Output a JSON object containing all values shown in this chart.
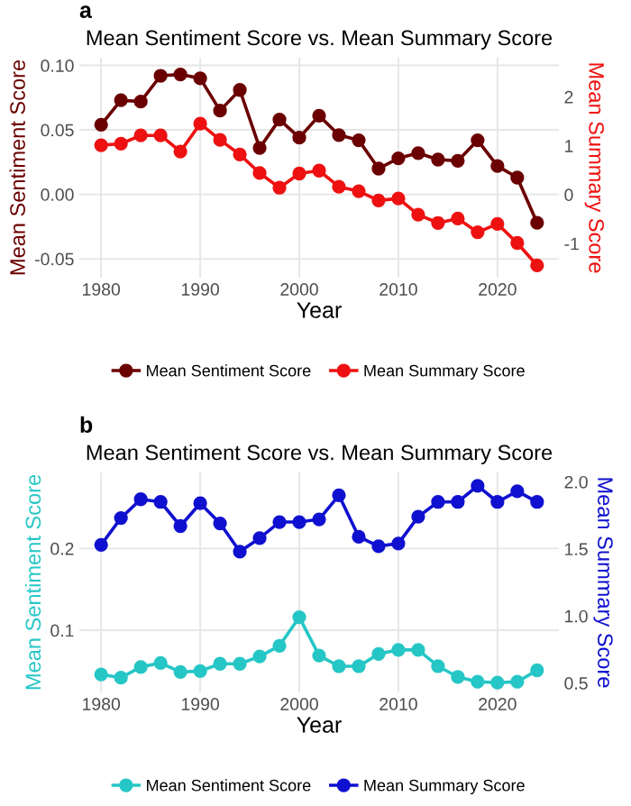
{
  "chart_data": [
    {
      "type": "line",
      "title": "Mean Sentiment Score vs. Mean Summary Score",
      "xlabel": "Year",
      "ylabel": "Mean Sentiment Score",
      "y2label": "Mean Summary Score",
      "annotations": [
        "a"
      ],
      "x": [
        1980,
        1982,
        1984,
        1986,
        1988,
        1990,
        1992,
        1994,
        1996,
        1998,
        2000,
        2002,
        2004,
        2006,
        2008,
        2010,
        2012,
        2014,
        2016,
        2018,
        2020,
        2022,
        2024
      ],
      "series": [
        {
          "name": "Mean Sentiment Score",
          "color": "#6b0000",
          "values": [
            0.054,
            0.073,
            0.072,
            0.092,
            0.093,
            0.09,
            0.065,
            0.081,
            0.036,
            0.058,
            0.044,
            0.061,
            0.046,
            0.042,
            0.02,
            0.028,
            0.032,
            0.027,
            0.026,
            0.042,
            0.022,
            0.013,
            -0.022
          ]
        },
        {
          "name": "Mean Summary Score",
          "color": "#ee1111",
          "axis": "y2",
          "values": [
            1.01,
            1.04,
            1.21,
            1.21,
            0.88,
            1.45,
            1.12,
            0.82,
            0.44,
            0.14,
            0.43,
            0.49,
            0.16,
            0.07,
            -0.12,
            -0.08,
            -0.41,
            -0.58,
            -0.49,
            -0.77,
            -0.6,
            -0.99,
            -1.45
          ]
        }
      ],
      "xlim": [
        1977.8,
        2026.2
      ],
      "xticks": [
        1980,
        1990,
        2000,
        2010,
        2020
      ],
      "ylim": [
        -0.0646,
        0.106
      ],
      "yticks": [
        {
          "value": -0.05,
          "label": "-0.05"
        },
        {
          "value": 0,
          "label": "0.00"
        },
        {
          "value": 0.05,
          "label": "0.05"
        },
        {
          "value": 0.1,
          "label": "0.10"
        }
      ],
      "y2lim": [
        -1.7,
        2.8
      ],
      "y2ticks": [
        {
          "value": -1,
          "label": "-1"
        },
        0,
        1,
        2
      ],
      "grid": true,
      "legend": "bottom",
      "marker": "circle",
      "line_style": "solid"
    },
    {
      "type": "line",
      "title": "Mean Sentiment Score vs. Mean Summary Score",
      "xlabel": "Year",
      "ylabel": "Mean Sentiment Score",
      "y2label": "Mean Summary Score",
      "annotations": [
        "b"
      ],
      "x": [
        1980,
        1982,
        1984,
        1986,
        1988,
        1990,
        1992,
        1994,
        1996,
        1998,
        2000,
        2002,
        2004,
        2006,
        2008,
        2010,
        2012,
        2014,
        2016,
        2018,
        2020,
        2022,
        2024
      ],
      "series": [
        {
          "name": "Mean Sentiment Score",
          "color": "#26c6c6",
          "values": [
            0.046,
            0.042,
            0.055,
            0.06,
            0.049,
            0.05,
            0.059,
            0.059,
            0.068,
            0.081,
            0.116,
            0.069,
            0.056,
            0.056,
            0.071,
            0.076,
            0.076,
            0.056,
            0.043,
            0.037,
            0.036,
            0.037,
            0.051
          ]
        },
        {
          "name": "Mean Summary Score",
          "color": "#1010d0",
          "axis": "y2",
          "values": [
            1.53,
            1.73,
            1.87,
            1.85,
            1.67,
            1.84,
            1.69,
            1.48,
            1.58,
            1.7,
            1.7,
            1.72,
            1.9,
            1.59,
            1.52,
            1.54,
            1.74,
            1.85,
            1.85,
            1.97,
            1.85,
            1.93,
            1.85
          ]
        }
      ],
      "xlim": [
        1977.8,
        2026.2
      ],
      "xticks": [
        1980,
        1990,
        2000,
        2010,
        2020
      ],
      "ylim": [
        0.024,
        0.293
      ],
      "yticks": [
        0.1,
        0.2
      ],
      "y2lim": [
        0.43,
        2.07
      ],
      "y2ticks": [
        {
          "value": 0.5,
          "label": "0.5"
        },
        {
          "value": 1.0,
          "label": "1.0"
        },
        {
          "value": 1.5,
          "label": "1.5"
        },
        {
          "value": 2.0,
          "label": "2.0"
        }
      ],
      "grid": true,
      "legend": "bottom",
      "marker": "circle",
      "line_style": "solid"
    }
  ]
}
